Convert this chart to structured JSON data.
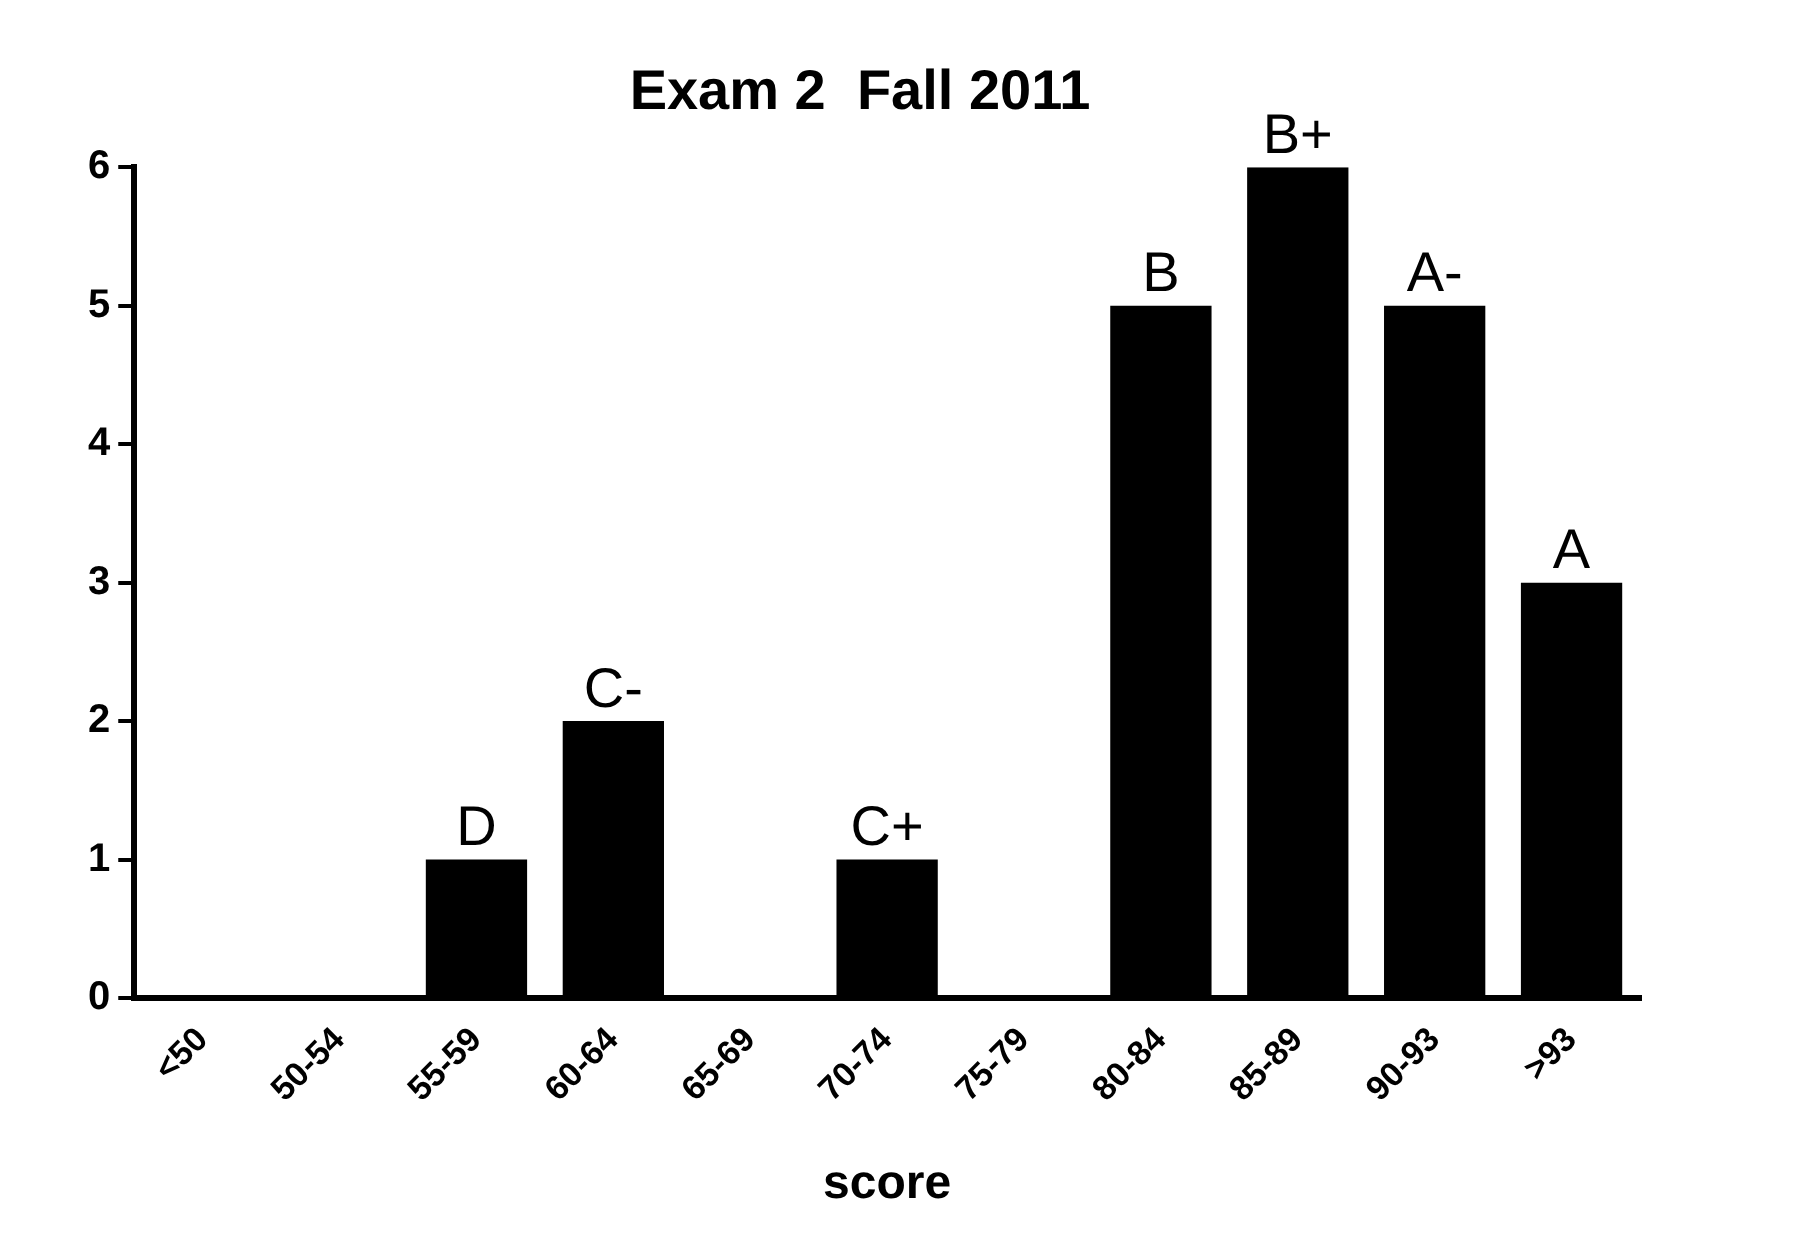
{
  "chart_data": {
    "type": "bar",
    "title": "Exam 2  Fall 2011",
    "xlabel": "score",
    "categories": [
      "<50",
      "50-54",
      "55-59",
      "60-64",
      "65-69",
      "70-74",
      "75-79",
      "80-84",
      "85-89",
      "90-93",
      ">93"
    ],
    "values": [
      0,
      0,
      1,
      2,
      0,
      1,
      0,
      5,
      6,
      5,
      3
    ],
    "color": "#000000",
    "ylim": [
      0,
      6
    ],
    "yticks": [
      0,
      1,
      2,
      3,
      4,
      5,
      6
    ],
    "grid": false,
    "legend": false,
    "annotations": [
      {
        "text": "D",
        "x": "55-59",
        "y": 1
      },
      {
        "text": "C-",
        "x": "60-64",
        "y": 2
      },
      {
        "text": "C+",
        "x": "70-74",
        "y": 1
      },
      {
        "text": "B",
        "x": "80-84",
        "y": 5
      },
      {
        "text": "B+",
        "x": "85-89",
        "y": 6
      },
      {
        "text": "A-",
        "x": "90-93",
        "y": 5
      },
      {
        "text": "A",
        "x": ">93",
        "y": 3
      }
    ]
  }
}
